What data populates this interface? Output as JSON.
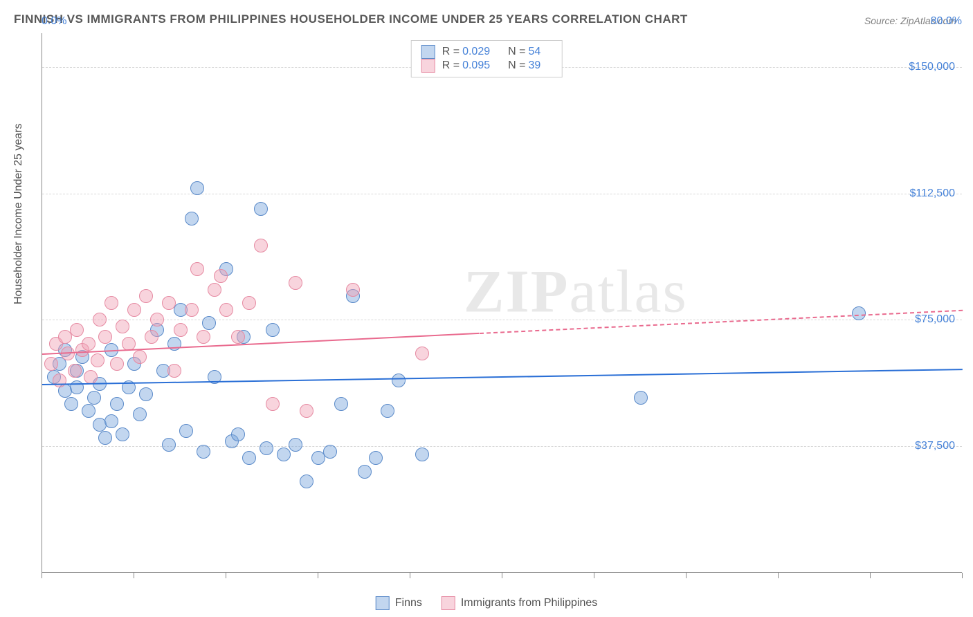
{
  "title": "FINNISH VS IMMIGRANTS FROM PHILIPPINES HOUSEHOLDER INCOME UNDER 25 YEARS CORRELATION CHART",
  "source": "Source: ZipAtlas.com",
  "watermark_a": "ZIP",
  "watermark_b": "atlas",
  "y_axis_title": "Householder Income Under 25 years",
  "chart": {
    "type": "scatter",
    "background_color": "#ffffff",
    "grid_color": "#d8d8d8",
    "axis_color": "#888888",
    "xlim": [
      0,
      80
    ],
    "ylim": [
      0,
      160000
    ],
    "x_tick_positions": [
      0,
      8,
      16,
      24,
      32,
      40,
      48,
      56,
      64,
      72,
      80
    ],
    "y_gridlines": [
      37500,
      75000,
      112500,
      150000
    ],
    "y_tick_labels": [
      "$37,500",
      "$75,000",
      "$112,500",
      "$150,000"
    ],
    "x_min_label": "0.0%",
    "x_max_label": "80.0%",
    "marker_radius": 10,
    "marker_border_width": 1.2,
    "series": [
      {
        "name": "Finns",
        "fill": "rgba(120,165,220,0.45)",
        "stroke": "#5a8ac9",
        "trend_color": "#2a6fd6",
        "trend_width": 2.5,
        "r_value": "0.029",
        "n_value": "54",
        "trend_y_at_xmin": 56000,
        "trend_y_at_xmax": 60500,
        "points": [
          [
            1,
            58000
          ],
          [
            1.5,
            62000
          ],
          [
            2,
            54000
          ],
          [
            2,
            66000
          ],
          [
            2.5,
            50000
          ],
          [
            3,
            60000
          ],
          [
            3,
            55000
          ],
          [
            3.5,
            64000
          ],
          [
            4,
            48000
          ],
          [
            4.5,
            52000
          ],
          [
            5,
            44000
          ],
          [
            5,
            56000
          ],
          [
            5.5,
            40000
          ],
          [
            6,
            66000
          ],
          [
            6,
            45000
          ],
          [
            6.5,
            50000
          ],
          [
            7,
            41000
          ],
          [
            7.5,
            55000
          ],
          [
            8,
            62000
          ],
          [
            8.5,
            47000
          ],
          [
            9,
            53000
          ],
          [
            10,
            72000
          ],
          [
            10.5,
            60000
          ],
          [
            11,
            38000
          ],
          [
            11.5,
            68000
          ],
          [
            12,
            78000
          ],
          [
            12.5,
            42000
          ],
          [
            13,
            105000
          ],
          [
            13.5,
            114000
          ],
          [
            14,
            36000
          ],
          [
            14.5,
            74000
          ],
          [
            15,
            58000
          ],
          [
            16,
            90000
          ],
          [
            16.5,
            39000
          ],
          [
            17,
            41000
          ],
          [
            17.5,
            70000
          ],
          [
            18,
            34000
          ],
          [
            19,
            108000
          ],
          [
            19.5,
            37000
          ],
          [
            20,
            72000
          ],
          [
            21,
            35000
          ],
          [
            22,
            38000
          ],
          [
            23,
            27000
          ],
          [
            24,
            34000
          ],
          [
            25,
            36000
          ],
          [
            26,
            50000
          ],
          [
            27,
            82000
          ],
          [
            28,
            30000
          ],
          [
            29,
            34000
          ],
          [
            30,
            48000
          ],
          [
            31,
            57000
          ],
          [
            33,
            35000
          ],
          [
            52,
            52000
          ],
          [
            71,
            77000
          ]
        ]
      },
      {
        "name": "Immigrants from Philippines",
        "fill": "rgba(240,160,180,0.45)",
        "stroke": "#e68aa2",
        "trend_color": "#e96a8e",
        "trend_width": 2,
        "r_value": "0.095",
        "n_value": "39",
        "trend_y_at_xmin": 65000,
        "trend_y_at_xmax": 78000,
        "trend_solid_until_x": 38,
        "points": [
          [
            0.8,
            62000
          ],
          [
            1.2,
            68000
          ],
          [
            1.5,
            57000
          ],
          [
            2,
            70000
          ],
          [
            2.2,
            65000
          ],
          [
            2.8,
            60000
          ],
          [
            3,
            72000
          ],
          [
            3.5,
            66000
          ],
          [
            4,
            68000
          ],
          [
            4.2,
            58000
          ],
          [
            4.8,
            63000
          ],
          [
            5,
            75000
          ],
          [
            5.5,
            70000
          ],
          [
            6,
            80000
          ],
          [
            6.5,
            62000
          ],
          [
            7,
            73000
          ],
          [
            7.5,
            68000
          ],
          [
            8,
            78000
          ],
          [
            8.5,
            64000
          ],
          [
            9,
            82000
          ],
          [
            9.5,
            70000
          ],
          [
            10,
            75000
          ],
          [
            11,
            80000
          ],
          [
            11.5,
            60000
          ],
          [
            12,
            72000
          ],
          [
            13,
            78000
          ],
          [
            13.5,
            90000
          ],
          [
            14,
            70000
          ],
          [
            15,
            84000
          ],
          [
            15.5,
            88000
          ],
          [
            16,
            78000
          ],
          [
            17,
            70000
          ],
          [
            18,
            80000
          ],
          [
            19,
            97000
          ],
          [
            20,
            50000
          ],
          [
            22,
            86000
          ],
          [
            23,
            48000
          ],
          [
            27,
            84000
          ],
          [
            33,
            65000
          ]
        ]
      }
    ]
  },
  "legend_bottom": {
    "items": [
      "Finns",
      "Immigrants from Philippines"
    ]
  },
  "legend_top_labels": {
    "r": "R =",
    "n": "N ="
  }
}
